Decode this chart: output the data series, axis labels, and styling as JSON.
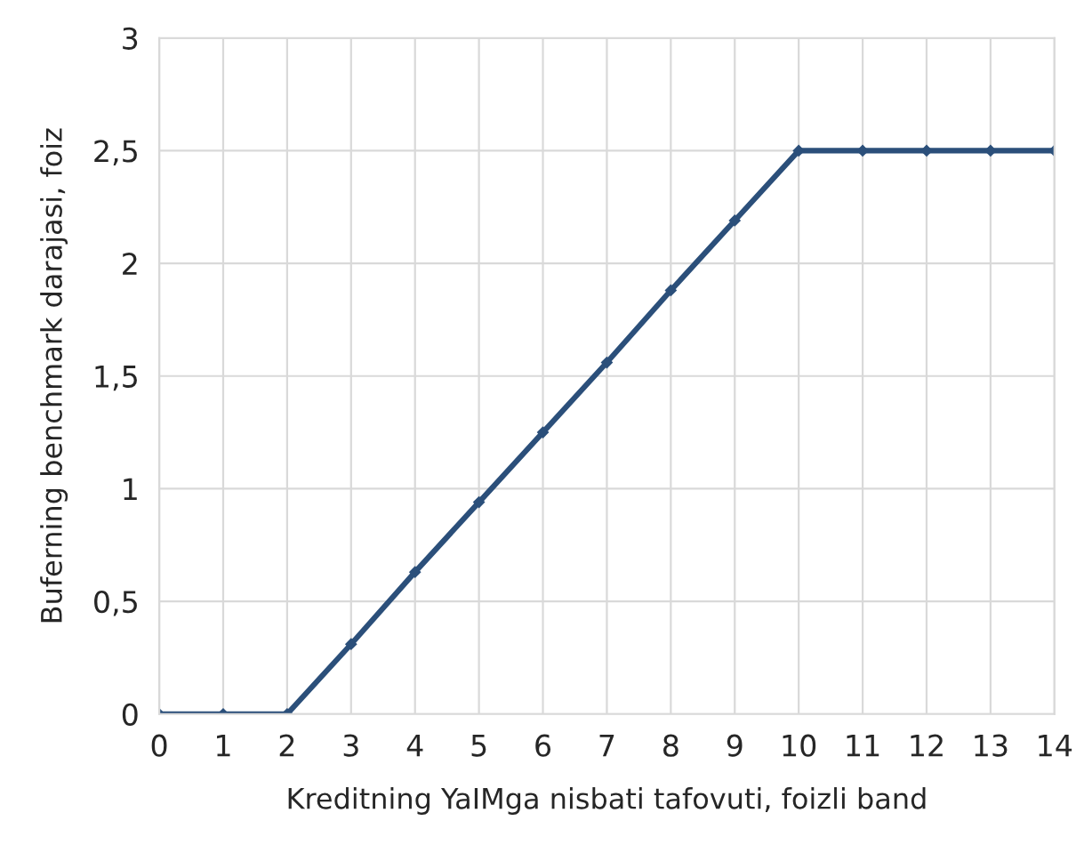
{
  "chart_data": {
    "type": "line",
    "xlabel": "Kreditning YaIMga nisbati tafovuti, foizli band",
    "ylabel": "Buferning benchmark darajasi, foiz",
    "x": [
      0,
      1,
      2,
      3,
      4,
      5,
      6,
      7,
      8,
      9,
      10,
      11,
      12,
      13,
      14
    ],
    "series": [
      {
        "color": "#2b4f7a",
        "values": [
          0,
          0,
          0,
          0.31,
          0.63,
          0.94,
          1.25,
          1.56,
          1.88,
          2.19,
          2.5,
          2.5,
          2.5,
          2.5,
          2.5
        ]
      }
    ],
    "xlim": [
      0,
      14
    ],
    "xticks": [
      0,
      1,
      2,
      3,
      4,
      5,
      6,
      7,
      8,
      9,
      10,
      11,
      12,
      13,
      14
    ],
    "ylim": [
      0,
      3
    ],
    "yticks": [
      0,
      {
        "value": 0.5,
        "label": "0,5"
      },
      1,
      {
        "value": 1.5,
        "label": "1,5"
      },
      2,
      {
        "value": 2.5,
        "label": "2,5"
      },
      3
    ],
    "grid": true,
    "marker": "diamond",
    "line_style": "solid",
    "legend": false
  }
}
